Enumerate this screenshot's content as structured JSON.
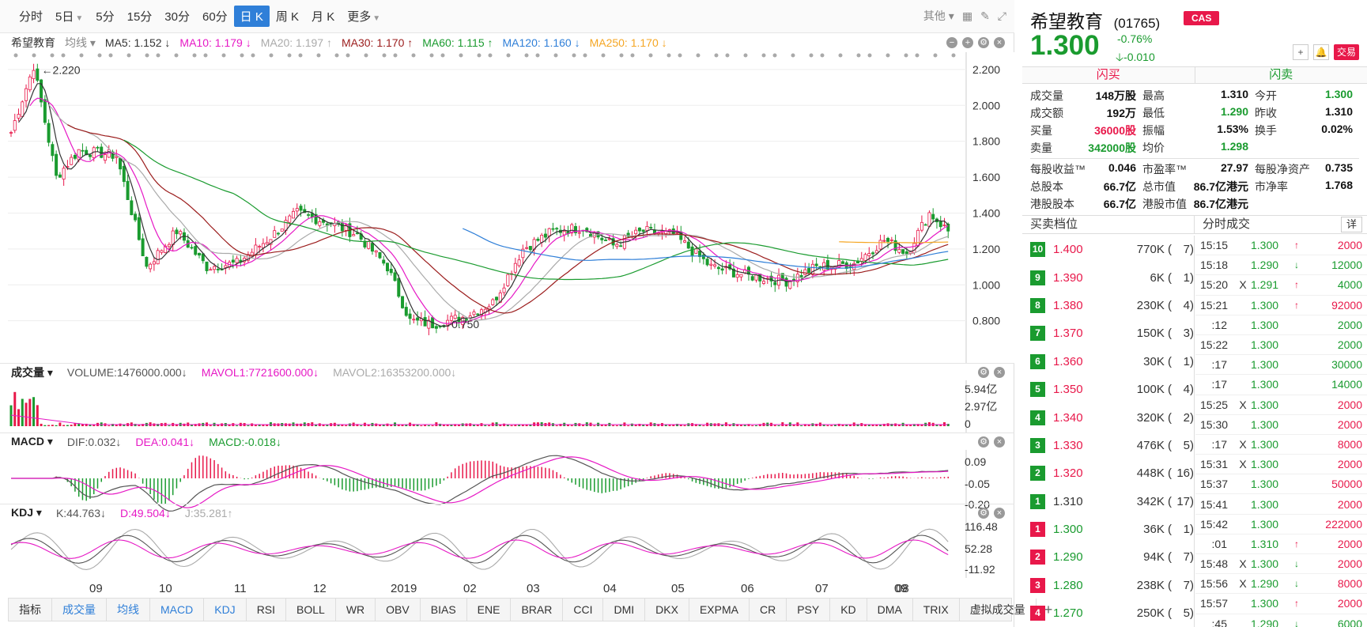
{
  "toolbar": {
    "periods": [
      "分时",
      "5日",
      "5分",
      "15分",
      "30分",
      "60分",
      "日 K",
      "周 K",
      "月 K",
      "更多"
    ],
    "active": "日 K",
    "other_label": "其他"
  },
  "ma_bar": {
    "stock_name": "希望教育",
    "type_label": "均线",
    "items": [
      {
        "label": "MA5: 1.152 ↓",
        "color": "#333333"
      },
      {
        "label": "MA10: 1.179 ↓",
        "color": "#e619c5"
      },
      {
        "label": "MA20: 1.197 ↑",
        "color": "#aaaaaa"
      },
      {
        "label": "MA30: 1.170 ↑",
        "color": "#9b1c1c"
      },
      {
        "label": "MA60: 1.115 ↑",
        "color": "#1a9b2f"
      },
      {
        "label": "MA120: 1.160 ↓",
        "color": "#2f7fd8"
      },
      {
        "label": "MA250: 1.170 ↓",
        "color": "#f5a623"
      }
    ]
  },
  "main_chart": {
    "yticks": [
      "2.200",
      "2.000",
      "1.800",
      "1.600",
      "1.400",
      "1.200",
      "1.000",
      "0.800"
    ],
    "high_label": "2.220",
    "low_label": "0.750"
  },
  "volume": {
    "name": "成交量",
    "items": [
      {
        "label": "VOLUME:1476000.000↓",
        "color": "#555555"
      },
      {
        "label": "MAVOL1:7721600.000↓",
        "color": "#e619c5"
      },
      {
        "label": "MAVOL2:16353200.000↓",
        "color": "#aaaaaa"
      }
    ],
    "yticks": [
      "5.94亿",
      "2.97亿",
      "0"
    ]
  },
  "macd": {
    "name": "MACD",
    "items": [
      {
        "label": "DIF:0.032↓",
        "color": "#555555"
      },
      {
        "label": "DEA:0.041↓",
        "color": "#e619c5"
      },
      {
        "label": "MACD:-0.018↓",
        "color": "#1a9b2f"
      }
    ],
    "yticks": [
      "0.09",
      "-0.05",
      "-0.20"
    ]
  },
  "kdj": {
    "name": "KDJ",
    "items": [
      {
        "label": "K:44.763↓",
        "color": "#555555"
      },
      {
        "label": "D:49.504↓",
        "color": "#e619c5"
      },
      {
        "label": "J:35.281↑",
        "color": "#aaaaaa"
      }
    ],
    "yticks": [
      "116.48",
      "52.28",
      "-11.92"
    ]
  },
  "xaxis": [
    "09",
    "10",
    "11",
    "12",
    "2019",
    "02",
    "03",
    "04",
    "05",
    "06",
    "07",
    "08",
    "09"
  ],
  "bottom_tabs": [
    "指标",
    "成交量",
    "均线",
    "MACD",
    "KDJ",
    "RSI",
    "BOLL",
    "WR",
    "OBV",
    "BIAS",
    "ENE",
    "BRAR",
    "CCI",
    "DMI",
    "DKX",
    "EXPMA",
    "CR",
    "PSY",
    "KD",
    "DMA",
    "TRIX",
    "虚拟成交量"
  ],
  "quote": {
    "name": "希望教育",
    "code": "(01765)",
    "badge": "CAS",
    "price": "1.300",
    "pct": "-0.76%",
    "change": "-0.010",
    "trade_label": "交易",
    "flash_buy": "闪买",
    "flash_sell": "闪卖"
  },
  "stats": [
    [
      [
        "成交量",
        "148万股",
        ""
      ],
      [
        "最高",
        "1.310",
        ""
      ],
      [
        "今开",
        "1.300",
        "green"
      ]
    ],
    [
      [
        "成交额",
        "192万",
        ""
      ],
      [
        "最低",
        "1.290",
        "green"
      ],
      [
        "昨收",
        "1.310",
        ""
      ]
    ],
    [
      [
        "买量",
        "36000股",
        "red"
      ],
      [
        "振幅",
        "1.53%",
        ""
      ],
      [
        "换手",
        "0.02%",
        ""
      ]
    ],
    [
      [
        "卖量",
        "342000股",
        "green"
      ],
      [
        "均价",
        "1.298",
        "green"
      ],
      [
        "",
        "",
        ""
      ]
    ]
  ],
  "stats2": [
    [
      [
        "每股收益™",
        "0.046",
        ""
      ],
      [
        "市盈率™",
        "27.97",
        ""
      ],
      [
        "每股净资产",
        "0.735",
        ""
      ]
    ],
    [
      [
        "总股本",
        "66.7亿",
        ""
      ],
      [
        "总市值",
        "86.7亿港元",
        ""
      ],
      [
        "市净率",
        "1.768",
        ""
      ]
    ],
    [
      [
        "港股股本",
        "66.7亿",
        ""
      ],
      [
        "港股市值",
        "86.7亿港元",
        ""
      ],
      [
        "",
        "",
        ""
      ]
    ]
  ],
  "orderbook_title": "买卖档位",
  "ticks_title": "分时成交",
  "ticks_detail": "详",
  "orderbook": [
    {
      "lvl": "10",
      "side": "ask",
      "price": "1.400",
      "vol": "770K",
      "cnt": "7"
    },
    {
      "lvl": "9",
      "side": "ask",
      "price": "1.390",
      "vol": "6K",
      "cnt": "1"
    },
    {
      "lvl": "8",
      "side": "ask",
      "price": "1.380",
      "vol": "230K",
      "cnt": "4"
    },
    {
      "lvl": "7",
      "side": "ask",
      "price": "1.370",
      "vol": "150K",
      "cnt": "3"
    },
    {
      "lvl": "6",
      "side": "ask",
      "price": "1.360",
      "vol": "30K",
      "cnt": "1"
    },
    {
      "lvl": "5",
      "side": "ask",
      "price": "1.350",
      "vol": "100K",
      "cnt": "4"
    },
    {
      "lvl": "4",
      "side": "ask",
      "price": "1.340",
      "vol": "320K",
      "cnt": "2"
    },
    {
      "lvl": "3",
      "side": "ask",
      "price": "1.330",
      "vol": "476K",
      "cnt": "5"
    },
    {
      "lvl": "2",
      "side": "ask",
      "price": "1.320",
      "vol": "448K",
      "cnt": "16"
    },
    {
      "lvl": "1",
      "side": "ask",
      "price": "1.310",
      "vol": "342K",
      "cnt": "17"
    },
    {
      "lvl": "1",
      "side": "bid",
      "price": "1.300",
      "vol": "36K",
      "cnt": "1"
    },
    {
      "lvl": "2",
      "side": "bid",
      "price": "1.290",
      "vol": "94K",
      "cnt": "7"
    },
    {
      "lvl": "3",
      "side": "bid",
      "price": "1.280",
      "vol": "238K",
      "cnt": "7"
    },
    {
      "lvl": "4",
      "side": "bid",
      "price": "1.270",
      "vol": "250K",
      "cnt": "5"
    }
  ],
  "ticks": [
    {
      "t": "15:15",
      "sub": false,
      "x": "",
      "p": "1.300",
      "dir": "up",
      "q": "2000",
      "qc": "red"
    },
    {
      "t": "15:18",
      "sub": false,
      "x": "",
      "p": "1.290",
      "dir": "down",
      "q": "12000",
      "qc": "green"
    },
    {
      "t": "15:20",
      "sub": false,
      "x": "X",
      "p": "1.291",
      "dir": "up",
      "q": "4000",
      "qc": "green"
    },
    {
      "t": "15:21",
      "sub": false,
      "x": "",
      "p": "1.300",
      "dir": "up",
      "q": "92000",
      "qc": "red"
    },
    {
      "t": ":12",
      "sub": true,
      "x": "",
      "p": "1.300",
      "dir": "",
      "q": "2000",
      "qc": "green"
    },
    {
      "t": "15:22",
      "sub": false,
      "x": "",
      "p": "1.300",
      "dir": "",
      "q": "2000",
      "qc": "green"
    },
    {
      "t": ":17",
      "sub": true,
      "x": "",
      "p": "1.300",
      "dir": "",
      "q": "30000",
      "qc": "green"
    },
    {
      "t": ":17",
      "sub": true,
      "x": "",
      "p": "1.300",
      "dir": "",
      "q": "14000",
      "qc": "green"
    },
    {
      "t": "15:25",
      "sub": false,
      "x": "X",
      "p": "1.300",
      "dir": "",
      "q": "2000",
      "qc": "red"
    },
    {
      "t": "15:30",
      "sub": false,
      "x": "",
      "p": "1.300",
      "dir": "",
      "q": "2000",
      "qc": "red"
    },
    {
      "t": ":17",
      "sub": true,
      "x": "X",
      "p": "1.300",
      "dir": "",
      "q": "8000",
      "qc": "red"
    },
    {
      "t": "15:31",
      "sub": false,
      "x": "X",
      "p": "1.300",
      "dir": "",
      "q": "2000",
      "qc": "red"
    },
    {
      "t": "15:37",
      "sub": false,
      "x": "",
      "p": "1.300",
      "dir": "",
      "q": "50000",
      "qc": "red"
    },
    {
      "t": "15:41",
      "sub": false,
      "x": "",
      "p": "1.300",
      "dir": "",
      "q": "2000",
      "qc": "red"
    },
    {
      "t": "15:42",
      "sub": false,
      "x": "",
      "p": "1.300",
      "dir": "",
      "q": "222000",
      "qc": "red"
    },
    {
      "t": ":01",
      "sub": true,
      "x": "",
      "p": "1.310",
      "dir": "up",
      "q": "2000",
      "qc": "red"
    },
    {
      "t": "15:48",
      "sub": false,
      "x": "X",
      "p": "1.300",
      "dir": "down",
      "q": "2000",
      "qc": "red"
    },
    {
      "t": "15:56",
      "sub": false,
      "x": "X",
      "p": "1.290",
      "dir": "down",
      "q": "8000",
      "qc": "red"
    },
    {
      "t": "15:57",
      "sub": false,
      "x": "",
      "p": "1.300",
      "dir": "up",
      "q": "2000",
      "qc": "red"
    },
    {
      "t": ":45",
      "sub": true,
      "x": "",
      "p": "1.290",
      "dir": "down",
      "q": "6000",
      "qc": "green"
    }
  ],
  "colors": {
    "up": "#e8184a",
    "down": "#1a9b2f",
    "accent": "#2f7fd8"
  }
}
